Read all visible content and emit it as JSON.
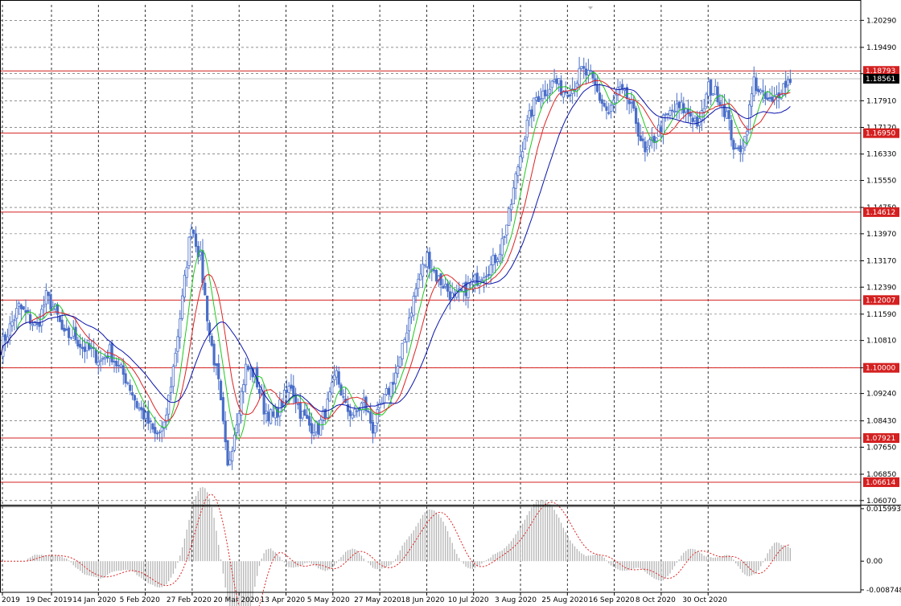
{
  "chart_data": [
    {
      "type": "candlestick",
      "panel": "price",
      "y_axis_ticks": [
        1.2029,
        1.1949,
        1.1871,
        1.1791,
        1.1712,
        1.1633,
        1.1555,
        1.1475,
        1.1397,
        1.1317,
        1.1239,
        1.1159,
        1.1081,
        1.1,
        1.0924,
        1.0843,
        1.0765,
        1.0685,
        1.0607
      ],
      "y_axis_ticks_text": [
        "1.20290",
        "1.19490",
        "1.18710",
        "1.17910",
        "1.17120",
        "1.16330",
        "1.15550",
        "1.14750",
        "1.13970",
        "1.13170",
        "1.12390",
        "1.11590",
        "1.10810",
        "1.10000",
        "1.09240",
        "1.08430",
        "1.07650",
        "1.06850",
        "1.06070"
      ],
      "ylim": [
        1.0597,
        1.2075
      ],
      "x_axis_labels": [
        "2019",
        "19 Dec 2019",
        "14 Jan 2020",
        "5 Feb 2020",
        "27 Feb 2020",
        "20 Mar 2020",
        "13 Apr 2020",
        "5 May 2020",
        "27 May 2020",
        "18 Jun 2020",
        "10 Jul 2020",
        "3 Aug 2020",
        "25 Aug 2020",
        "16 Sep 2020",
        "8 Oct 2020",
        "30 Oct 2020"
      ],
      "horizontal_levels": [
        {
          "value": 1.18793,
          "label": "1.18793"
        },
        {
          "value": 1.1695,
          "label": "1.16950"
        },
        {
          "value": 1.14612,
          "label": "1.14612"
        },
        {
          "value": 1.12007,
          "label": "1.12007"
        },
        {
          "value": 1.1,
          "label": "1.10000"
        },
        {
          "value": 1.07921,
          "label": "1.07921"
        },
        {
          "value": 1.06614,
          "label": "1.06614"
        }
      ],
      "current_price": {
        "value": 1.18561,
        "label": "1.18561"
      },
      "close_path": [
        [
          0,
          1.106
        ],
        [
          4,
          1.112
        ],
        [
          8,
          1.118
        ],
        [
          12,
          1.115
        ],
        [
          16,
          1.112
        ],
        [
          20,
          1.121
        ],
        [
          24,
          1.117
        ],
        [
          28,
          1.109
        ],
        [
          32,
          1.11
        ],
        [
          36,
          1.106
        ],
        [
          40,
          1.105
        ],
        [
          44,
          1.102
        ],
        [
          48,
          1.105
        ],
        [
          52,
          1.1
        ],
        [
          56,
          1.096
        ],
        [
          60,
          1.089
        ],
        [
          64,
          1.085
        ],
        [
          68,
          1.08
        ],
        [
          72,
          1.082
        ],
        [
          76,
          1.1
        ],
        [
          80,
          1.12
        ],
        [
          84,
          1.143
        ],
        [
          88,
          1.132
        ],
        [
          92,
          1.11
        ],
        [
          96,
          1.095
        ],
        [
          100,
          1.07
        ],
        [
          104,
          1.085
        ],
        [
          108,
          1.1
        ],
        [
          112,
          1.098
        ],
        [
          116,
          1.088
        ],
        [
          120,
          1.085
        ],
        [
          124,
          1.09
        ],
        [
          128,
          1.095
        ],
        [
          132,
          1.087
        ],
        [
          136,
          1.083
        ],
        [
          140,
          1.082
        ],
        [
          144,
          1.089
        ],
        [
          148,
          1.098
        ],
        [
          152,
          1.088
        ],
        [
          156,
          1.086
        ],
        [
          160,
          1.09
        ],
        [
          164,
          1.082
        ],
        [
          168,
          1.089
        ],
        [
          172,
          1.095
        ],
        [
          176,
          1.102
        ],
        [
          180,
          1.115
        ],
        [
          184,
          1.126
        ],
        [
          188,
          1.133
        ],
        [
          192,
          1.127
        ],
        [
          196,
          1.124
        ],
        [
          200,
          1.12
        ],
        [
          204,
          1.123
        ],
        [
          208,
          1.125
        ],
        [
          212,
          1.128
        ],
        [
          216,
          1.13
        ],
        [
          220,
          1.135
        ],
        [
          224,
          1.145
        ],
        [
          228,
          1.16
        ],
        [
          232,
          1.172
        ],
        [
          236,
          1.18
        ],
        [
          240,
          1.182
        ],
        [
          244,
          1.185
        ],
        [
          248,
          1.182
        ],
        [
          252,
          1.183
        ],
        [
          256,
          1.188
        ],
        [
          260,
          1.186
        ],
        [
          264,
          1.18
        ],
        [
          268,
          1.175
        ],
        [
          272,
          1.182
        ],
        [
          276,
          1.18
        ],
        [
          280,
          1.173
        ],
        [
          284,
          1.163
        ],
        [
          288,
          1.168
        ],
        [
          292,
          1.173
        ],
        [
          296,
          1.176
        ],
        [
          300,
          1.177
        ],
        [
          304,
          1.175
        ],
        [
          308,
          1.172
        ],
        [
          312,
          1.183
        ],
        [
          316,
          1.181
        ],
        [
          320,
          1.175
        ],
        [
          324,
          1.163
        ],
        [
          328,
          1.168
        ],
        [
          332,
          1.185
        ],
        [
          336,
          1.18
        ],
        [
          340,
          1.178
        ],
        [
          344,
          1.183
        ],
        [
          348,
          1.1856
        ]
      ],
      "last_index": 348
    },
    {
      "type": "histogram+line",
      "panel": "oscillator",
      "y_axis_ticks": [
        0.015993,
        0.0,
        -0.008748
      ],
      "y_axis_ticks_text": [
        "0.015993",
        "0.00",
        "-0.008748"
      ],
      "ylim": [
        -0.0095,
        0.0167
      ],
      "signal_color": "#dd2222",
      "histogram_color": "#b4b4b4"
    }
  ],
  "colors": {
    "candles": "#4a6fc8",
    "ma_fast": "#1ec81e",
    "ma_mid": "#dd2222",
    "ma_slow": "#0a14aa",
    "level_line": "#d42020",
    "level_label_bg": "#d42020",
    "current_label_bg": "#000000",
    "grid": "#000000",
    "current_line": "#aaaaaa"
  }
}
